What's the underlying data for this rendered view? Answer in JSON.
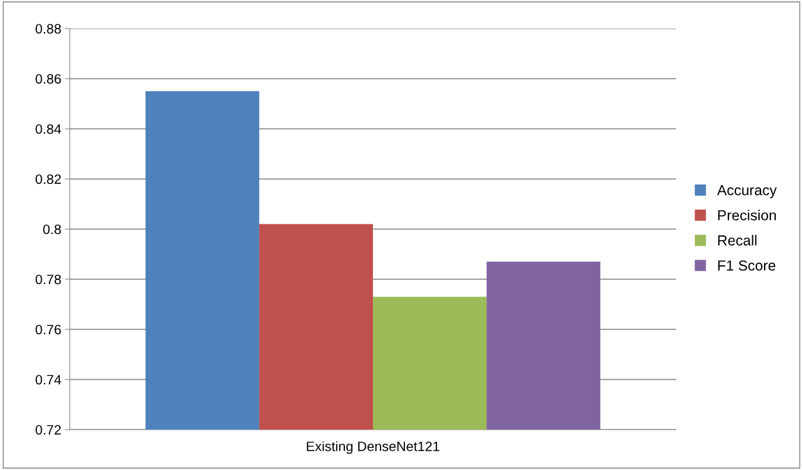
{
  "chart_data": {
    "type": "bar",
    "categories": [
      "Existing DenseNet121"
    ],
    "series": [
      {
        "name": "Accuracy",
        "color": "#4f81bd",
        "values": [
          0.855
        ]
      },
      {
        "name": "Precision",
        "color": "#c0504d",
        "values": [
          0.802
        ]
      },
      {
        "name": "Recall",
        "color": "#9bbb59",
        "values": [
          0.773
        ]
      },
      {
        "name": "F1 Score",
        "color": "#8064a2",
        "values": [
          0.787
        ]
      }
    ],
    "ylim": [
      0.72,
      0.88
    ],
    "yticks": [
      0.72,
      0.74,
      0.76,
      0.78,
      {
        "value": 0.8,
        "label": "0.8"
      },
      0.82,
      0.84,
      0.86,
      0.88
    ],
    "grid": "y",
    "legend": "right"
  }
}
